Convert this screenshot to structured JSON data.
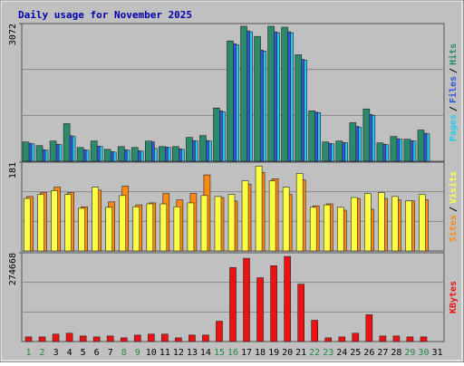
{
  "chart_data": [
    {
      "type": "bar",
      "title": "Daily usage for November 2025",
      "legend_separator": "/",
      "ylim": [
        0,
        3072
      ],
      "yticks": [
        3072
      ],
      "series": [
        {
          "name": "Pages",
          "color": "#22ccee",
          "values": [
            389,
            246,
            369,
            553,
            246,
            328,
            205,
            246,
            225,
            287,
            307,
            266,
            451,
            451,
            1106,
            2601,
            2888,
            2458,
            2867,
            2867,
            2253,
            1085,
            389,
            410,
            758,
            1024,
            369,
            492,
            451,
            614,
            0
          ]
        },
        {
          "name": "Files",
          "color": "#3355dd",
          "values": [
            400,
            256,
            380,
            570,
            256,
            338,
            215,
            256,
            235,
            430,
            318,
            276,
            461,
            461,
            1126,
            2622,
            2908,
            2478,
            2888,
            2888,
            2273,
            1095,
            400,
            420,
            778,
            1044,
            380,
            502,
            461,
            625,
            0
          ]
        },
        {
          "name": "Hits",
          "color": "#2a8a6a",
          "values": [
            430,
            348,
            451,
            840,
            307,
            451,
            266,
            328,
            307,
            451,
            328,
            328,
            532,
            573,
            1188,
            2683,
            3011,
            2785,
            3011,
            2990,
            2376,
            1126,
            430,
            451,
            860,
            1167,
            410,
            553,
            492,
            696,
            0
          ]
        }
      ]
    },
    {
      "type": "bar",
      "legend_separator": "/",
      "ylim": [
        0,
        181
      ],
      "yticks": [
        181
      ],
      "series": [
        {
          "name": "Sites",
          "color": "#ff8811",
          "values": [
            111,
            119,
            130,
            119,
            90,
            124,
            100,
            132,
            94,
            98,
            117,
            104,
            117,
            155,
            109,
            102,
            136,
            160,
            147,
            115,
            145,
            92,
            96,
            83,
            107,
            85,
            107,
            104,
            102,
            104,
            0
          ]
        },
        {
          "name": "Visits",
          "color": "#ffff44",
          "values": [
            107,
            115,
            123,
            115,
            87,
            130,
            89,
            113,
            90,
            96,
            96,
            90,
            98,
            113,
            111,
            115,
            143,
            173,
            143,
            130,
            158,
            89,
            94,
            89,
            109,
            117,
            119,
            111,
            102,
            115,
            0
          ]
        }
      ]
    },
    {
      "type": "bar",
      "ylim": [
        0,
        274668
      ],
      "yticks": [
        274668
      ],
      "categories": [
        "1",
        "2",
        "3",
        "4",
        "5",
        "6",
        "7",
        "8",
        "9",
        "10",
        "11",
        "12",
        "13",
        "14",
        "15",
        "16",
        "17",
        "18",
        "19",
        "20",
        "21",
        "22",
        "23",
        "24",
        "25",
        "26",
        "27",
        "28",
        "29",
        "30",
        "31"
      ],
      "x_label_colors": [
        "#228844",
        "#228844",
        "#000000",
        "#000000",
        "#000000",
        "#000000",
        "#000000",
        "#228844",
        "#228844",
        "#000000",
        "#000000",
        "#000000",
        "#000000",
        "#000000",
        "#228844",
        "#228844",
        "#000000",
        "#000000",
        "#000000",
        "#000000",
        "#000000",
        "#228844",
        "#228844",
        "#000000",
        "#000000",
        "#000000",
        "#000000",
        "#000000",
        "#228844",
        "#228844",
        "#000000"
      ],
      "series": [
        {
          "name": "KBytes",
          "color": "#ee1111",
          "values": [
            14305,
            14305,
            22888,
            25749,
            17166,
            14305,
            17166,
            11444,
            20027,
            22888,
            22888,
            11444,
            20027,
            20027,
            62942,
            228880,
            257490,
            197409,
            234602,
            263212,
            177382,
            65803,
            11444,
            14305,
            25749,
            82969,
            17166,
            17166,
            14305,
            14305,
            0
          ]
        }
      ]
    }
  ]
}
